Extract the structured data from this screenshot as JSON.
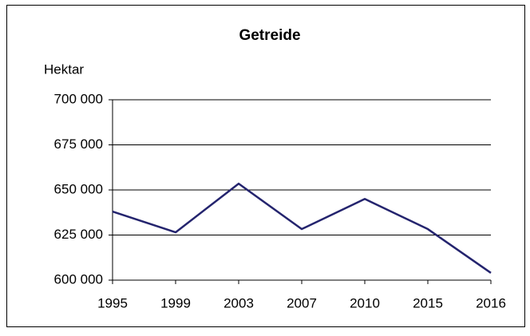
{
  "chart_data": {
    "type": "line",
    "title": "Getreide",
    "y_label": "Hektar",
    "categories": [
      "1995",
      "1999",
      "2003",
      "2007",
      "2010",
      "2015",
      "2016"
    ],
    "series": [
      {
        "name": "Getreide",
        "color": "#24246e",
        "values": [
          638000,
          626500,
          653500,
          628300,
          645000,
          628300,
          604000
        ]
      }
    ],
    "ylim": [
      600000,
      700000
    ],
    "yticks": [
      {
        "value": 600000,
        "label": "600 000"
      },
      {
        "value": 625000,
        "label": "625 000"
      },
      {
        "value": 650000,
        "label": "650 000"
      },
      {
        "value": 675000,
        "label": "675 000"
      },
      {
        "value": 700000,
        "label": "700 000"
      }
    ],
    "grid": true
  }
}
